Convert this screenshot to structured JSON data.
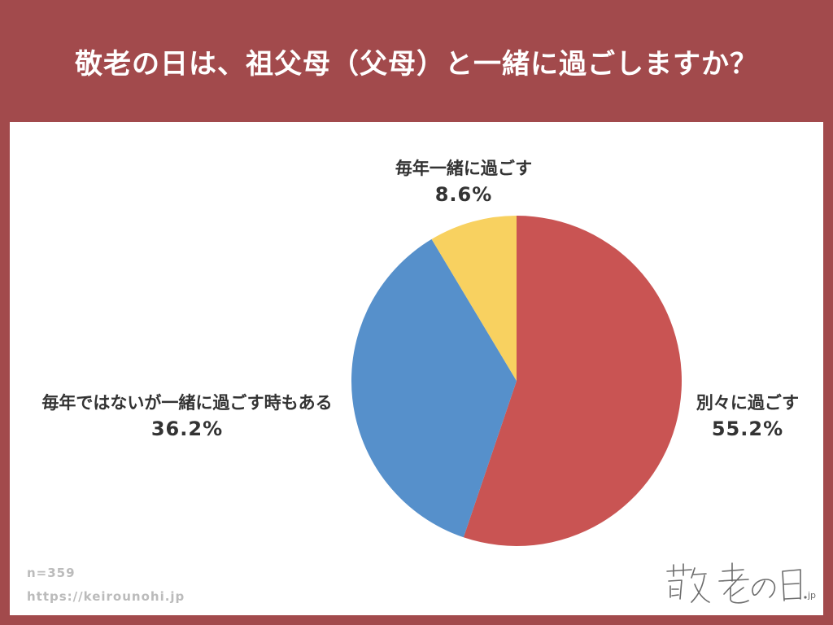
{
  "header": {
    "title": "敬老の日は、祖父母（父母）と一緒に過ごしますか？"
  },
  "chart_data": {
    "type": "pie",
    "start_angle_deg": 0,
    "direction": "clockwise",
    "slices": [
      {
        "name": "別々に過ごす",
        "value": 55.2,
        "label": "55.2%",
        "color": "#C95453"
      },
      {
        "name": "毎年ではないが一緒に過ごす時もある",
        "value": 36.2,
        "label": "36.2%",
        "color": "#5690CB"
      },
      {
        "name": "毎年一緒に過ごす",
        "value": 8.6,
        "label": "8.6%",
        "color": "#F8D160"
      }
    ]
  },
  "footer": {
    "sample": "n=359",
    "url": "https://keirounohi.jp"
  },
  "logo": {
    "text": "敬老の日.jp",
    "color": "#6B6B6B"
  },
  "colors": {
    "header_background": "#A24A4C",
    "card_background": "#FFFFFF",
    "label_text": "#333333",
    "footer_text": "#BBBBBB"
  }
}
